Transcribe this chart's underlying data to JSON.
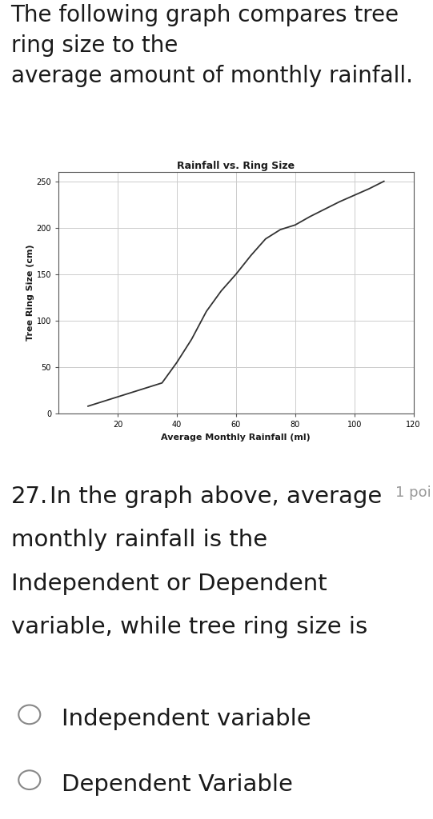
{
  "header_text": "The following graph compares tree\nring size to the\naverage amount of monthly rainfall.",
  "chart_title": "Rainfall vs. Ring Size",
  "xlabel": "Average Monthly Rainfall (ml)",
  "ylabel": "Tree Ring Size (cm)",
  "x_data": [
    10,
    20,
    30,
    35,
    40,
    45,
    50,
    55,
    60,
    65,
    70,
    75,
    80,
    85,
    90,
    95,
    100,
    105,
    110
  ],
  "y_data": [
    8,
    18,
    28,
    33,
    55,
    80,
    110,
    132,
    150,
    170,
    188,
    198,
    203,
    212,
    220,
    228,
    235,
    242,
    250
  ],
  "xlim": [
    0,
    120
  ],
  "ylim": [
    0,
    260
  ],
  "xticks": [
    20,
    40,
    60,
    80,
    100,
    120
  ],
  "yticks": [
    0,
    50,
    100,
    150,
    200,
    250
  ],
  "line_color": "#333333",
  "grid_color": "#cccccc",
  "bg_color": "#ffffff",
  "question_number": "27.",
  "question_line1": "In the graph above, average",
  "question_line2": "monthly rainfall is the",
  "question_line3": "Independent or Dependent",
  "question_line4": "variable, while tree ring size is",
  "points_text": "1 poi",
  "option1": "Independent variable",
  "option2": "Dependent Variable",
  "header_bg": "#ffffff",
  "separator_bg": "#dddde8",
  "question_bg": "#ffffff",
  "header_fontsize": 20,
  "question_fontsize": 21,
  "option_fontsize": 21,
  "chart_title_fontsize": 9,
  "axis_label_fontsize": 8,
  "tick_fontsize": 7
}
